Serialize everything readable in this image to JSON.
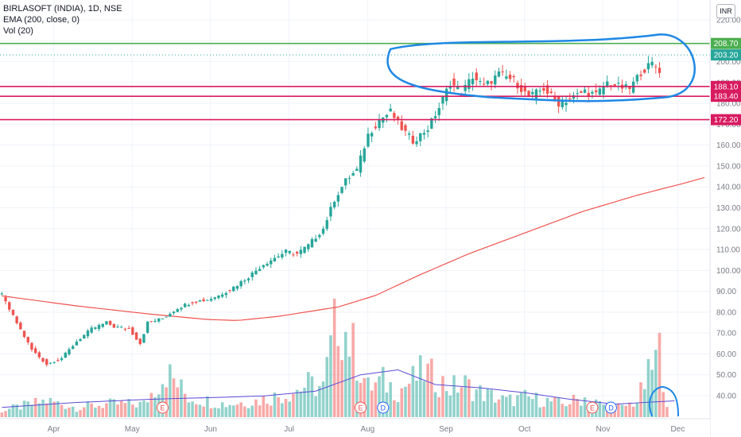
{
  "legend": {
    "symbol_line": "BIRLASOFT (INDIA), 1D, NSE",
    "ema_line": "EMA (200, close, 0)",
    "vol_line": "Vol (20)"
  },
  "currency_button": "INR",
  "chart_data": {
    "type": "candlestick",
    "ylim": [
      30,
      220
    ],
    "y_ticks": [
      "220.00",
      "210.00",
      "200.00",
      "190.00",
      "180.00",
      "170.00",
      "160.00",
      "150.00",
      "140.00",
      "130.00",
      "120.00",
      "110.00",
      "100.00",
      "90.00",
      "80.00",
      "70.00",
      "60.00",
      "50.00",
      "40.00"
    ],
    "x_ticks": [
      "Apr",
      "May",
      "Jun",
      "Jul",
      "Aug",
      "Sep",
      "Oct",
      "Nov",
      "Dec"
    ],
    "price_lines": [
      {
        "label": "208.70",
        "value": 208.7,
        "color": "#4caf50",
        "style": "solid"
      },
      {
        "label": "203.20",
        "value": 203.2,
        "color": "#26a69a",
        "style": "dotted"
      },
      {
        "label": "188.10",
        "value": 188.1,
        "color": "#d81b60",
        "style": "solid"
      },
      {
        "label": "183.40",
        "value": 183.4,
        "color": "#d81b60",
        "style": "solid"
      },
      {
        "label": "172.20",
        "value": 172.2,
        "color": "#d81b60",
        "style": "solid"
      }
    ],
    "price_path": [
      [
        0,
        88
      ],
      [
        3,
        78
      ],
      [
        8,
        62
      ],
      [
        12,
        55
      ],
      [
        16,
        58
      ],
      [
        20,
        66
      ],
      [
        24,
        72
      ],
      [
        28,
        75
      ],
      [
        30,
        73
      ],
      [
        34,
        72
      ],
      [
        37,
        65
      ],
      [
        39,
        75
      ],
      [
        43,
        77
      ],
      [
        47,
        82
      ],
      [
        51,
        85
      ],
      [
        55,
        86
      ],
      [
        58,
        88
      ],
      [
        62,
        92
      ],
      [
        66,
        97
      ],
      [
        70,
        103
      ],
      [
        73,
        106
      ],
      [
        76,
        109
      ],
      [
        79,
        108
      ],
      [
        82,
        112
      ],
      [
        86,
        120
      ],
      [
        89,
        134
      ],
      [
        92,
        143
      ],
      [
        95,
        148
      ],
      [
        98,
        165
      ],
      [
        101,
        172
      ],
      [
        104,
        176
      ],
      [
        107,
        168
      ],
      [
        110,
        162
      ],
      [
        114,
        168
      ],
      [
        117,
        178
      ],
      [
        120,
        190
      ],
      [
        123,
        185
      ],
      [
        126,
        193
      ],
      [
        129,
        188
      ],
      [
        133,
        194
      ],
      [
        137,
        191
      ],
      [
        141,
        183
      ],
      [
        145,
        187
      ],
      [
        149,
        180
      ],
      [
        153,
        183
      ],
      [
        156,
        186
      ],
      [
        159,
        184
      ],
      [
        162,
        190
      ],
      [
        165,
        188
      ],
      [
        168,
        187
      ],
      [
        171,
        195
      ],
      [
        174,
        199
      ],
      [
        176,
        196
      ]
    ],
    "ema_200": [
      [
        0,
        87.8
      ],
      [
        20,
        83
      ],
      [
        40,
        79
      ],
      [
        55,
        76.5
      ],
      [
        63,
        76
      ],
      [
        74,
        78
      ],
      [
        90,
        82.5
      ],
      [
        100,
        88
      ],
      [
        112,
        98
      ],
      [
        125,
        108
      ],
      [
        140,
        118
      ],
      [
        155,
        128
      ],
      [
        170,
        136
      ],
      [
        182,
        141.5
      ],
      [
        188,
        144.5
      ]
    ],
    "volume_path": [
      [
        0,
        2
      ],
      [
        12,
        5
      ],
      [
        20,
        3
      ],
      [
        28,
        4
      ],
      [
        38,
        4
      ],
      [
        44,
        14
      ],
      [
        50,
        6
      ],
      [
        60,
        4
      ],
      [
        68,
        5
      ],
      [
        76,
        7
      ],
      [
        82,
        10
      ],
      [
        86,
        9
      ],
      [
        90,
        32
      ],
      [
        95,
        18
      ],
      [
        98,
        9
      ],
      [
        102,
        11
      ],
      [
        106,
        8
      ],
      [
        113,
        14
      ],
      [
        120,
        9
      ],
      [
        124,
        10
      ],
      [
        127,
        8
      ],
      [
        135,
        5
      ],
      [
        140,
        6
      ],
      [
        146,
        5
      ],
      [
        150,
        4
      ],
      [
        156,
        6
      ],
      [
        160,
        4
      ],
      [
        166,
        3
      ],
      [
        170,
        5
      ],
      [
        176,
        20
      ],
      [
        177,
        14
      ],
      [
        178,
        5
      ],
      [
        180,
        3
      ]
    ],
    "volume_ma": [
      [
        0,
        3
      ],
      [
        20,
        4.5
      ],
      [
        40,
        5.5
      ],
      [
        56,
        6
      ],
      [
        70,
        6.5
      ],
      [
        84,
        8
      ],
      [
        96,
        13
      ],
      [
        106,
        14.5
      ],
      [
        116,
        10
      ],
      [
        128,
        9
      ],
      [
        140,
        7.5
      ],
      [
        152,
        5.5
      ],
      [
        164,
        4
      ],
      [
        172,
        4.5
      ],
      [
        180,
        5
      ]
    ],
    "event_markers": [
      {
        "label": "E",
        "day": 43,
        "color": "#ef5350"
      },
      {
        "label": "E",
        "day": 96,
        "color": "#ef5350"
      },
      {
        "label": "D",
        "day": 102,
        "color": "#2962ff"
      },
      {
        "label": "E",
        "day": 158,
        "color": "#ef5350"
      },
      {
        "label": "D",
        "day": 163,
        "color": "#2962ff"
      }
    ],
    "colors": {
      "up": "#26a69a",
      "down": "#ef5350",
      "ema": "#ef5350",
      "vol_ma": "#5c4ad6",
      "annotation": "#1e88e5",
      "grid": "#f0f3fa"
    }
  }
}
